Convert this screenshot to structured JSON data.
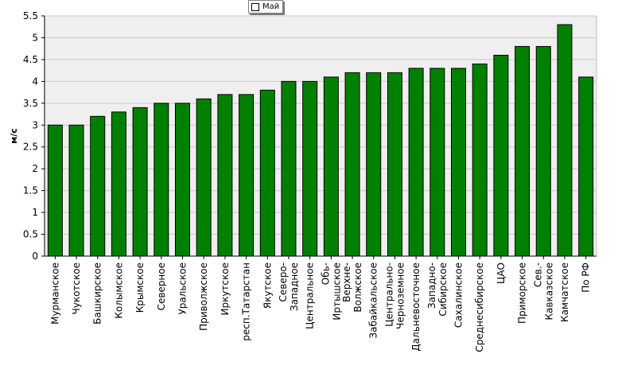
{
  "chart_data": {
    "type": "bar",
    "ylabel": "м/с",
    "ylim": [
      0,
      5.5
    ],
    "yticks": [
      0,
      0.5,
      1,
      1.5,
      2,
      2.5,
      3,
      3.5,
      4,
      4.5,
      5,
      5.5
    ],
    "grid": true,
    "legend_position": "top",
    "categories": [
      [
        "Мурманское"
      ],
      [
        "Чукотское"
      ],
      [
        "Башкирское"
      ],
      [
        "Колымское"
      ],
      [
        "Крымское"
      ],
      [
        "Северное"
      ],
      [
        "Уральское"
      ],
      [
        "Приволжское"
      ],
      [
        "Иркутское"
      ],
      [
        "респ.Татарстан"
      ],
      [
        "Якутское"
      ],
      [
        "Северо-",
        "Западное"
      ],
      [
        "Центральное"
      ],
      [
        "Обь-",
        "Иртышское"
      ],
      [
        "Верхне-",
        "Волжское"
      ],
      [
        "Забайкальское"
      ],
      [
        "Центрально-",
        "Черноземное"
      ],
      [
        "Дальневосточное"
      ],
      [
        "Западно-",
        "Сибирское"
      ],
      [
        "Сахалинское"
      ],
      [
        "Среднесибирское"
      ],
      [
        "ЦАО"
      ],
      [
        "Приморское"
      ],
      [
        "Сев.-",
        "Кавказское"
      ],
      [
        "Камчатское"
      ],
      [
        "По РФ"
      ]
    ],
    "series": [
      {
        "name": "Май",
        "color": "#008000",
        "values": [
          3.0,
          3.0,
          3.2,
          3.3,
          3.4,
          3.5,
          3.5,
          3.6,
          3.7,
          3.7,
          3.8,
          4.0,
          4.0,
          4.1,
          4.2,
          4.2,
          4.2,
          4.3,
          4.3,
          4.3,
          4.4,
          4.6,
          4.8,
          4.8,
          5.3,
          4.1
        ]
      }
    ],
    "colors": {
      "plot_background": "#efefef",
      "gridline": "#c8c8c8",
      "bar_outline": "#000000"
    }
  }
}
